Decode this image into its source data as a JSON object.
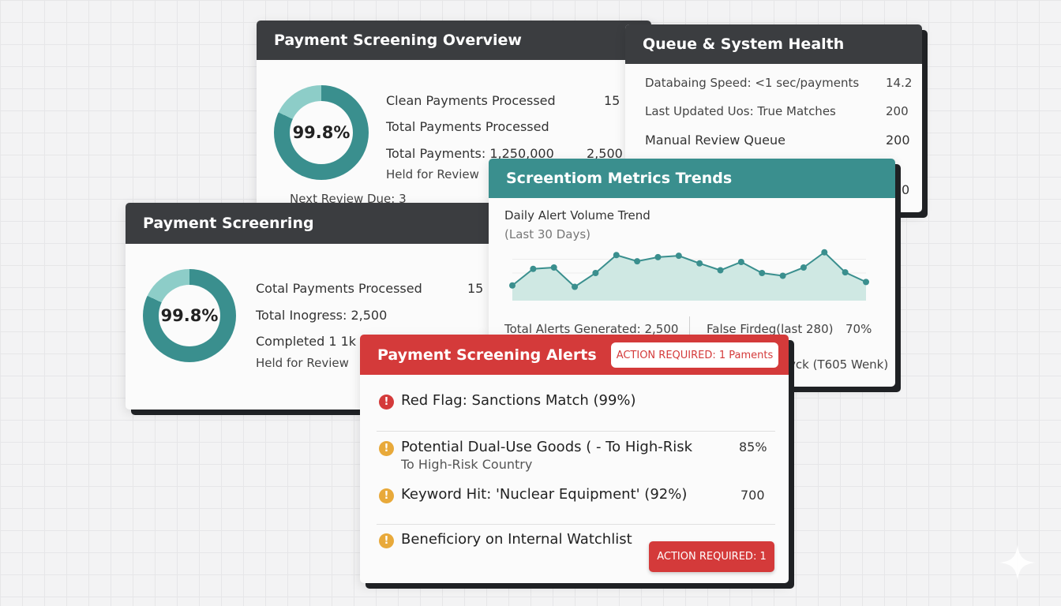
{
  "overview": {
    "title": "Payment Screening Overview",
    "donut_label": "99.8%",
    "donut_fill": 0.82,
    "rows": [
      {
        "label": "Clean Payments Processed",
        "value": "15"
      },
      {
        "label": "Total Payments Processed",
        "value": ""
      },
      {
        "label": "Total Payments: 1,250,000",
        "value": "2,500"
      }
    ],
    "held_label": "Held for Review",
    "next_review": "Next Review Due: 3"
  },
  "queue": {
    "title": "Queue & System Health",
    "rows": [
      {
        "label": "Databaing Speed: <1 sec/payments",
        "value": "14.2"
      },
      {
        "label": "Last Updated Uos: True Matches",
        "value": "200"
      },
      {
        "label": "Manual Review Queue",
        "value": "200"
      }
    ],
    "hidden_value": "0"
  },
  "screening": {
    "title": "Payment Screenring",
    "donut_label": "99.8%",
    "donut_fill": 0.82,
    "rows": [
      {
        "label": "Cotal Payments Processed",
        "value": "15"
      },
      {
        "label": "Total Inogress: 2,500",
        "value": ""
      },
      {
        "label": "Completed 1 1k 8",
        "value": ""
      }
    ],
    "held_label": "Held for Review"
  },
  "trends": {
    "title": "Screentiom Metrics Trends",
    "chart_title": "Daily Alert Volume Trend",
    "chart_subtitle": "(Last 30 Days)",
    "total_alerts": "Total Alerts Generated: 2,500",
    "false_flag": "False Firdeg(last 280)",
    "false_pct": "70%",
    "trailing": "vck (T605 Wenk)"
  },
  "chart_data": {
    "type": "area",
    "title": "Daily Alert Volume Trend",
    "subtitle": "(Last 30 Days)",
    "x": [
      1,
      2,
      3,
      4,
      5,
      6,
      7,
      8,
      9,
      10,
      11,
      12,
      13,
      14,
      15,
      16,
      17,
      18
    ],
    "values": [
      22,
      46,
      48,
      20,
      40,
      66,
      57,
      63,
      65,
      54,
      44,
      56,
      40,
      36,
      48,
      70,
      41,
      27
    ],
    "ylim": [
      0,
      80
    ],
    "grid": true,
    "color": "#3a8f8e",
    "fill_color": "#cfe8e3"
  },
  "alerts": {
    "title": "Payment Screening Alerts",
    "header_badge": "ACTION REQUIRED: 1 Paments",
    "items": [
      {
        "text": "Red Flag: Sanctions Match (99%)",
        "sub": "",
        "value": "",
        "level": "red"
      },
      {
        "text": "Potential Dual-Use Goods ( - To High-Risk",
        "sub": "To High-Risk Country",
        "value": "85%",
        "level": "yellow"
      },
      {
        "text": "Keyword Hit: 'Nuclear Equipment' (92%)",
        "sub": "",
        "value": "700",
        "level": "yellow"
      },
      {
        "text": "Beneficiory on Internal Watchlist",
        "sub": "",
        "value": "",
        "level": "yellow"
      }
    ],
    "action_button": "ACTION REQUIRED: 1",
    "icon_glyph": "!"
  },
  "colors": {
    "teal": "#3a8f8e",
    "teal_light": "#8dcdc8",
    "dark_header": "#3b3d40",
    "alert_red": "#d43a3a",
    "alert_yellow": "#e8a93a"
  }
}
